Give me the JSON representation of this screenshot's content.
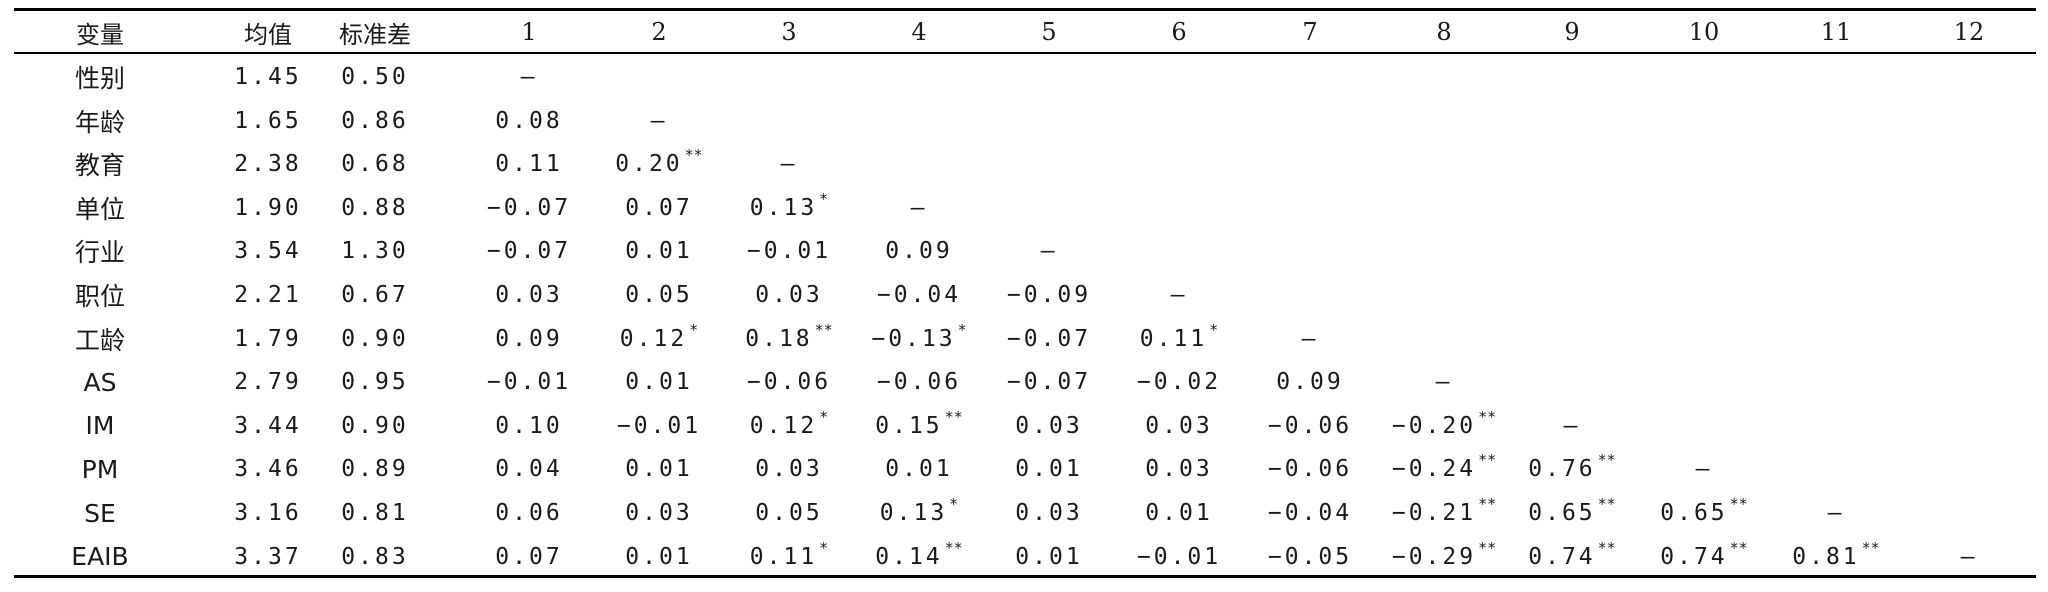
{
  "table": {
    "headers": [
      "变量",
      "均值",
      "标准差",
      "1",
      "2",
      "3",
      "4",
      "5",
      "6",
      "7",
      "8",
      "9",
      "10",
      "11",
      "12"
    ],
    "rows": [
      {
        "name": "性别",
        "mean": "1.45",
        "sd": "0.50",
        "cells": [
          {
            "v": "—",
            "s": ""
          }
        ]
      },
      {
        "name": "年龄",
        "mean": "1.65",
        "sd": "0.86",
        "cells": [
          {
            "v": "0.08",
            "s": ""
          },
          {
            "v": "—",
            "s": ""
          }
        ]
      },
      {
        "name": "教育",
        "mean": "2.38",
        "sd": "0.68",
        "cells": [
          {
            "v": "0.11",
            "s": ""
          },
          {
            "v": "0.20",
            "s": "**"
          },
          {
            "v": "—",
            "s": ""
          }
        ]
      },
      {
        "name": "单位",
        "mean": "1.90",
        "sd": "0.88",
        "cells": [
          {
            "v": "−0.07",
            "s": ""
          },
          {
            "v": "0.07",
            "s": ""
          },
          {
            "v": "0.13",
            "s": "*"
          },
          {
            "v": "—",
            "s": ""
          }
        ]
      },
      {
        "name": "行业",
        "mean": "3.54",
        "sd": "1.30",
        "cells": [
          {
            "v": "−0.07",
            "s": ""
          },
          {
            "v": "0.01",
            "s": ""
          },
          {
            "v": "−0.01",
            "s": ""
          },
          {
            "v": "0.09",
            "s": ""
          },
          {
            "v": "—",
            "s": ""
          }
        ]
      },
      {
        "name": "职位",
        "mean": "2.21",
        "sd": "0.67",
        "cells": [
          {
            "v": "0.03",
            "s": ""
          },
          {
            "v": "0.05",
            "s": ""
          },
          {
            "v": "0.03",
            "s": ""
          },
          {
            "v": "−0.04",
            "s": ""
          },
          {
            "v": "−0.09",
            "s": ""
          },
          {
            "v": "—",
            "s": ""
          }
        ]
      },
      {
        "name": "工龄",
        "mean": "1.79",
        "sd": "0.90",
        "cells": [
          {
            "v": "0.09",
            "s": ""
          },
          {
            "v": "0.12",
            "s": "*"
          },
          {
            "v": "0.18",
            "s": "**"
          },
          {
            "v": "−0.13",
            "s": "*"
          },
          {
            "v": "−0.07",
            "s": ""
          },
          {
            "v": "0.11",
            "s": "*"
          },
          {
            "v": "—",
            "s": ""
          }
        ]
      },
      {
        "name": "AS",
        "mean": "2.79",
        "sd": "0.95",
        "cells": [
          {
            "v": "−0.01",
            "s": ""
          },
          {
            "v": "0.01",
            "s": ""
          },
          {
            "v": "−0.06",
            "s": ""
          },
          {
            "v": "−0.06",
            "s": ""
          },
          {
            "v": "−0.07",
            "s": ""
          },
          {
            "v": "−0.02",
            "s": ""
          },
          {
            "v": "0.09",
            "s": ""
          },
          {
            "v": "—",
            "s": ""
          }
        ]
      },
      {
        "name": "IM",
        "mean": "3.44",
        "sd": "0.90",
        "cells": [
          {
            "v": "0.10",
            "s": ""
          },
          {
            "v": "−0.01",
            "s": ""
          },
          {
            "v": "0.12",
            "s": "*"
          },
          {
            "v": "0.15",
            "s": "**"
          },
          {
            "v": "0.03",
            "s": ""
          },
          {
            "v": "0.03",
            "s": ""
          },
          {
            "v": "−0.06",
            "s": ""
          },
          {
            "v": "−0.20",
            "s": "**"
          },
          {
            "v": "—",
            "s": ""
          }
        ]
      },
      {
        "name": "PM",
        "mean": "3.46",
        "sd": "0.89",
        "cells": [
          {
            "v": "0.04",
            "s": ""
          },
          {
            "v": "0.01",
            "s": ""
          },
          {
            "v": "0.03",
            "s": ""
          },
          {
            "v": "0.01",
            "s": ""
          },
          {
            "v": "0.01",
            "s": ""
          },
          {
            "v": "0.03",
            "s": ""
          },
          {
            "v": "−0.06",
            "s": ""
          },
          {
            "v": "−0.24",
            "s": "**"
          },
          {
            "v": "0.76",
            "s": "**"
          },
          {
            "v": "—",
            "s": ""
          }
        ]
      },
      {
        "name": "SE",
        "mean": "3.16",
        "sd": "0.81",
        "cells": [
          {
            "v": "0.06",
            "s": ""
          },
          {
            "v": "0.03",
            "s": ""
          },
          {
            "v": "0.05",
            "s": ""
          },
          {
            "v": "0.13",
            "s": "*"
          },
          {
            "v": "0.03",
            "s": ""
          },
          {
            "v": "0.01",
            "s": ""
          },
          {
            "v": "−0.04",
            "s": ""
          },
          {
            "v": "−0.21",
            "s": "**"
          },
          {
            "v": "0.65",
            "s": "**"
          },
          {
            "v": "0.65",
            "s": "**"
          },
          {
            "v": "—",
            "s": ""
          }
        ]
      },
      {
        "name": "EAIB",
        "mean": "3.37",
        "sd": "0.83",
        "cells": [
          {
            "v": "0.07",
            "s": ""
          },
          {
            "v": "0.01",
            "s": ""
          },
          {
            "v": "0.11",
            "s": "*"
          },
          {
            "v": "0.14",
            "s": "**"
          },
          {
            "v": "0.01",
            "s": ""
          },
          {
            "v": "−0.01",
            "s": ""
          },
          {
            "v": "−0.05",
            "s": ""
          },
          {
            "v": "−0.29",
            "s": "**"
          },
          {
            "v": "0.74",
            "s": "**"
          },
          {
            "v": "0.74",
            "s": "**"
          },
          {
            "v": "0.81",
            "s": "**"
          },
          {
            "v": "—",
            "s": ""
          }
        ]
      }
    ]
  }
}
